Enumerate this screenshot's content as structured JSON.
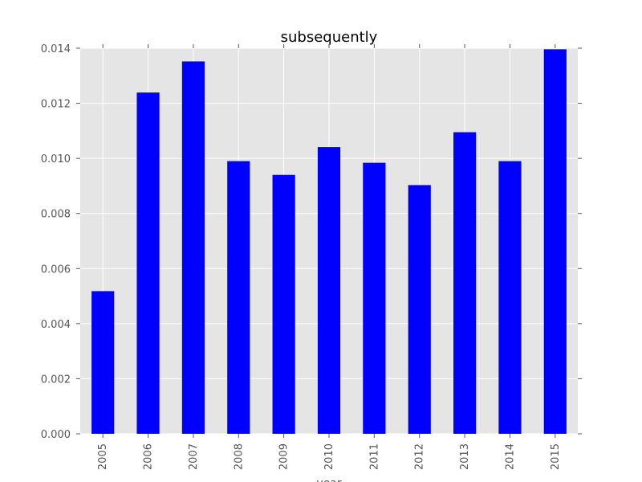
{
  "chart_data": {
    "type": "bar",
    "title": "subsequently",
    "xlabel": "year",
    "ylabel": "",
    "categories": [
      "2005",
      "2006",
      "2007",
      "2008",
      "2009",
      "2010",
      "2011",
      "2012",
      "2013",
      "2014",
      "2015"
    ],
    "values": [
      0.00518,
      0.01239,
      0.01352,
      0.0099,
      0.0094,
      0.01041,
      0.00984,
      0.00903,
      0.01095,
      0.0099,
      0.01396
    ],
    "ylim": [
      0,
      0.014
    ],
    "yticks": [
      "0.000",
      "0.002",
      "0.004",
      "0.006",
      "0.008",
      "0.010",
      "0.012",
      "0.014"
    ],
    "grid": true,
    "colors": {
      "bar": "#0000ff",
      "plot_background": "#e5e5e5",
      "grid": "#ffffff"
    }
  }
}
